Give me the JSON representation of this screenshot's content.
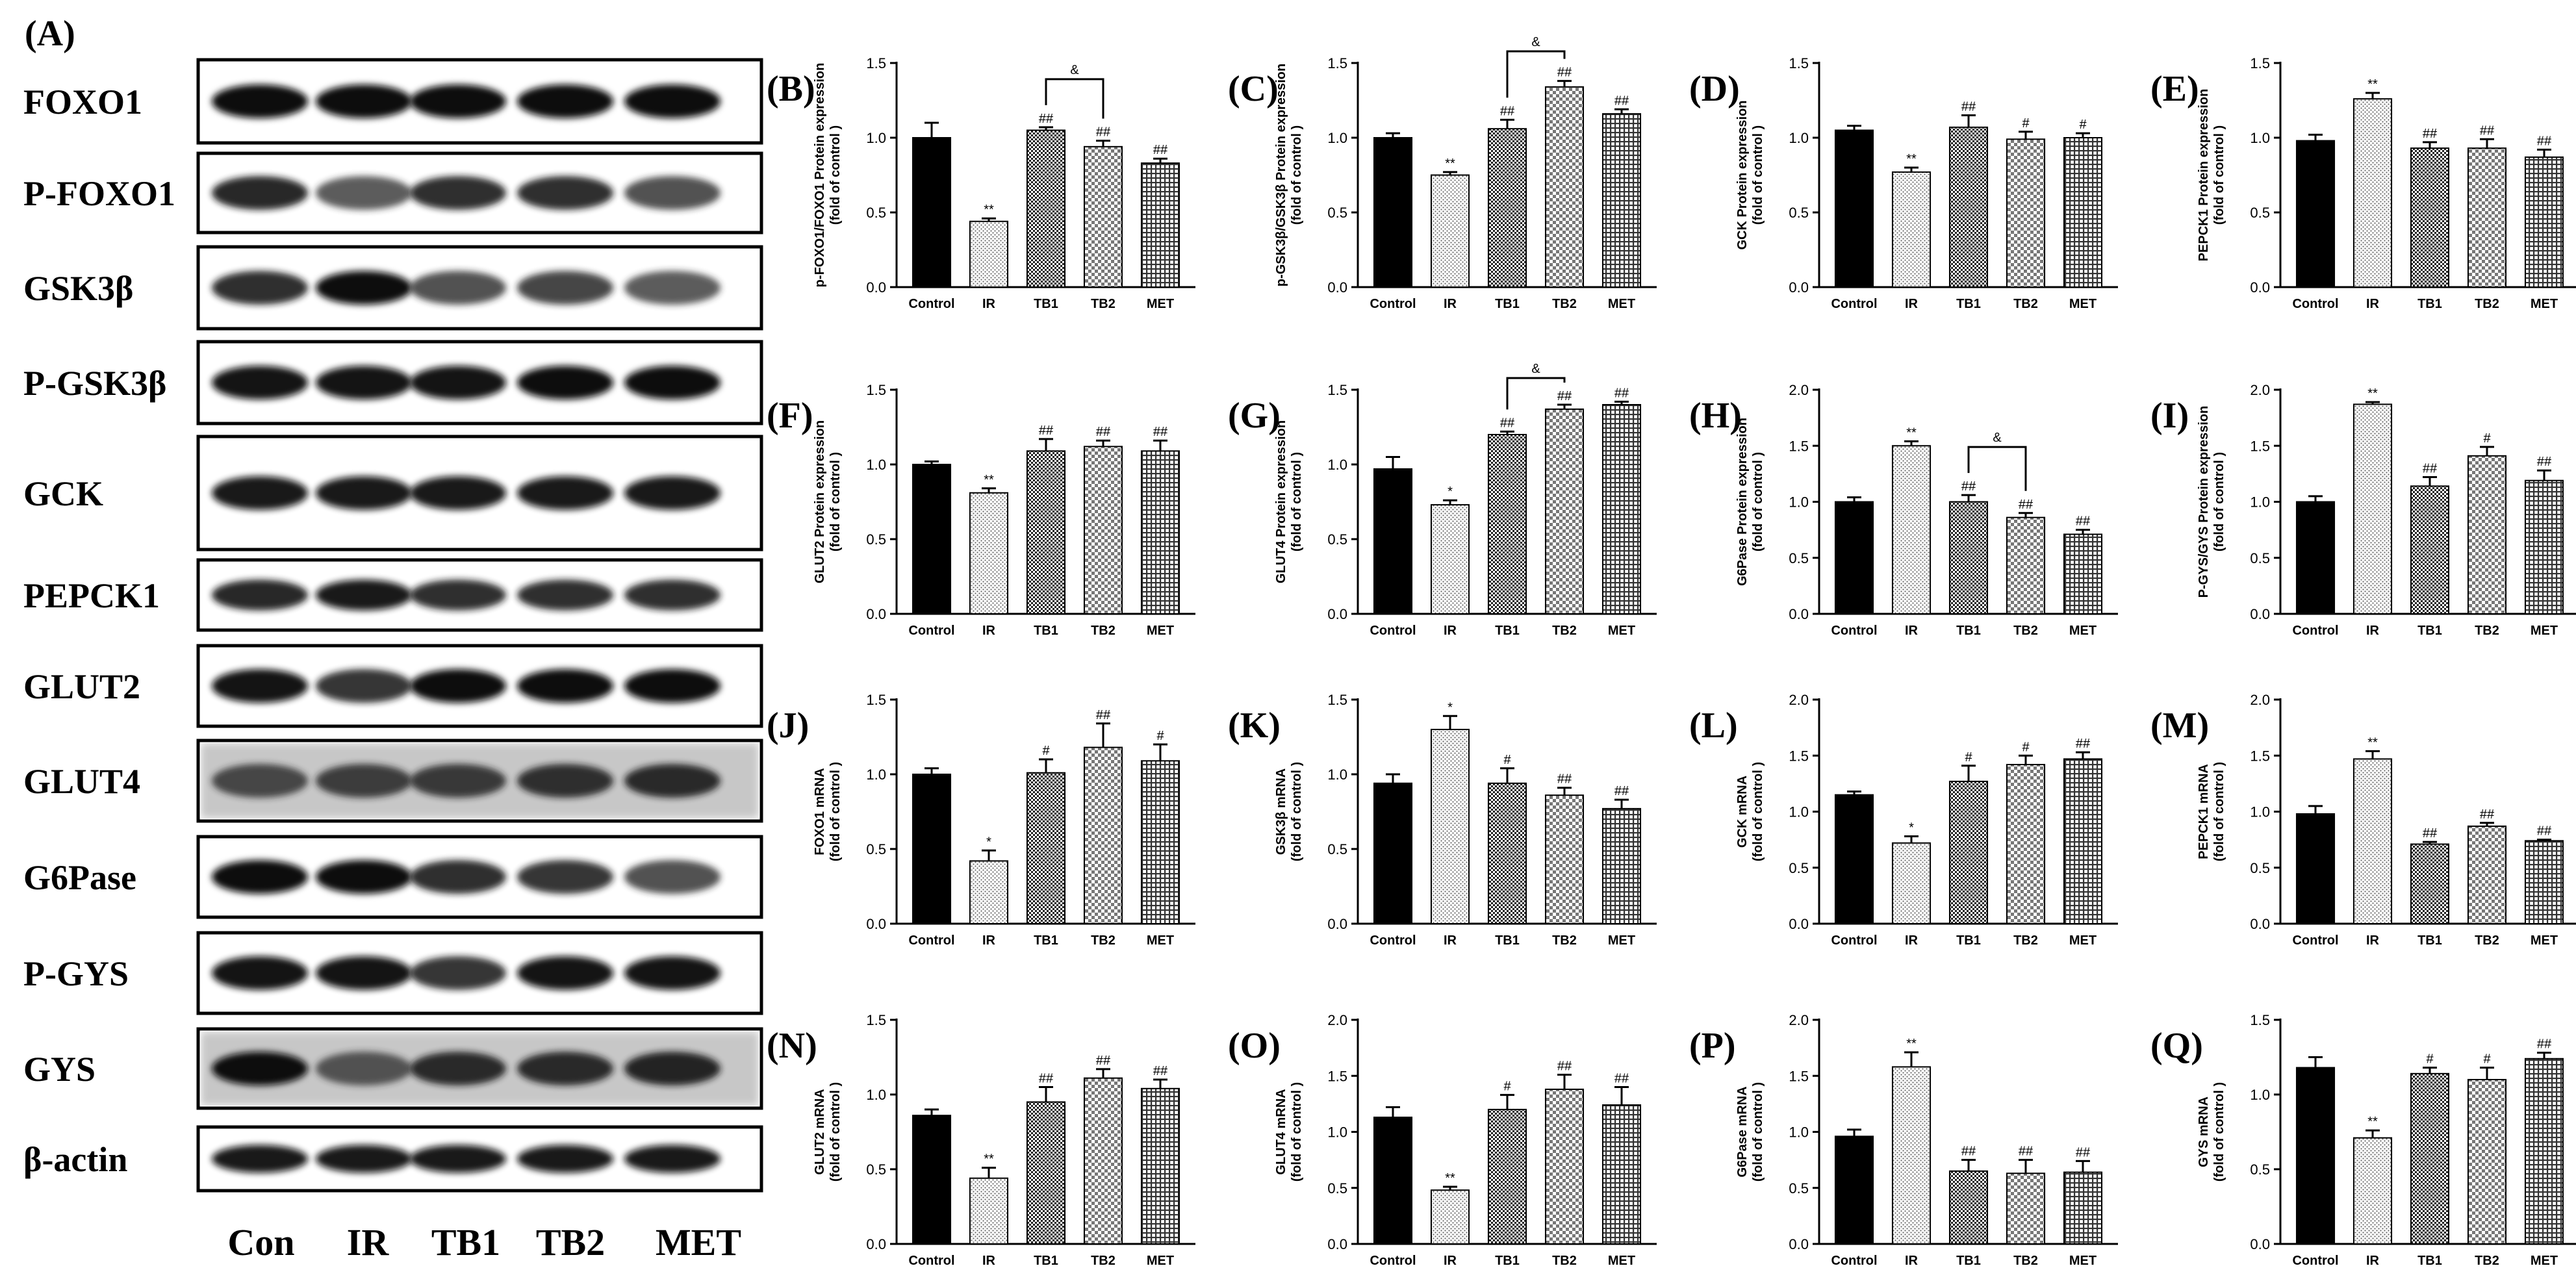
{
  "blot": {
    "panel_label": "(A)",
    "rows": [
      "FOXO1",
      "P-FOXO1",
      "GSK3β",
      "P-GSK3β",
      "GCK",
      "PEPCK1",
      "GLUT2",
      "GLUT4",
      "G6Pase",
      "P-GYS",
      "GYS",
      "β-actin"
    ],
    "lanes": [
      "Con",
      "IR",
      "TB1",
      "TB2",
      "MET"
    ]
  },
  "chart_data": [
    {
      "panel": "(B)",
      "type": "bar",
      "ylabel": [
        "p-FOXO1/FOXO1 Protein expression",
        "(fold of control )"
      ],
      "categories": [
        "Control",
        "IR",
        "TB1",
        "TB2",
        "MET"
      ],
      "values": [
        1.0,
        0.44,
        1.05,
        0.94,
        0.83
      ],
      "errors": [
        0.1,
        0.02,
        0.02,
        0.04,
        0.03
      ],
      "marks": [
        "",
        "**",
        "##",
        "##",
        "##"
      ],
      "ylim": [
        0,
        1.5
      ],
      "yticks": [
        "0.0",
        "0.5",
        "1.0",
        "1.5"
      ],
      "bracket": {
        "from": 2,
        "to": 3,
        "label": "&"
      }
    },
    {
      "panel": "(C)",
      "type": "bar",
      "ylabel": [
        "p-GSK3β/GSK3β Protein expression",
        "(fold of control )"
      ],
      "categories": [
        "Control",
        "IR",
        "TB1",
        "TB2",
        "MET"
      ],
      "values": [
        1.0,
        0.75,
        1.06,
        1.34,
        1.16
      ],
      "errors": [
        0.03,
        0.02,
        0.06,
        0.04,
        0.03
      ],
      "marks": [
        "",
        "**",
        "##",
        "##",
        "##"
      ],
      "ylim": [
        0,
        1.5
      ],
      "yticks": [
        "0.0",
        "0.5",
        "1.0",
        "1.5"
      ],
      "bracket": {
        "from": 2,
        "to": 3,
        "label": "&"
      }
    },
    {
      "panel": "(D)",
      "type": "bar",
      "ylabel": [
        "GCK Protein expression",
        "(fold of control )"
      ],
      "categories": [
        "Control",
        "IR",
        "TB1",
        "TB2",
        "MET"
      ],
      "values": [
        1.05,
        0.77,
        1.07,
        0.99,
        1.0
      ],
      "errors": [
        0.03,
        0.03,
        0.08,
        0.05,
        0.03
      ],
      "marks": [
        "",
        "**",
        "##",
        "#",
        "#"
      ],
      "ylim": [
        0,
        1.5
      ],
      "yticks": [
        "0.0",
        "0.5",
        "1.0",
        "1.5"
      ]
    },
    {
      "panel": "(E)",
      "type": "bar",
      "ylabel": [
        "PEPCK1 Protein expression",
        "(fold of control )"
      ],
      "categories": [
        "Control",
        "IR",
        "TB1",
        "TB2",
        "MET"
      ],
      "values": [
        0.98,
        1.26,
        0.93,
        0.93,
        0.87
      ],
      "errors": [
        0.04,
        0.04,
        0.04,
        0.06,
        0.05
      ],
      "marks": [
        "",
        "**",
        "##",
        "##",
        "##"
      ],
      "ylim": [
        0,
        1.5
      ],
      "yticks": [
        "0.0",
        "0.5",
        "1.0",
        "1.5"
      ]
    },
    {
      "panel": "(F)",
      "type": "bar",
      "ylabel": [
        "GLUT2 Protein expression",
        "(fold of control )"
      ],
      "categories": [
        "Control",
        "IR",
        "TB1",
        "TB2",
        "MET"
      ],
      "values": [
        1.0,
        0.81,
        1.09,
        1.12,
        1.09
      ],
      "errors": [
        0.02,
        0.03,
        0.08,
        0.04,
        0.07
      ],
      "marks": [
        "",
        "**",
        "##",
        "##",
        "##"
      ],
      "ylim": [
        0,
        1.5
      ],
      "yticks": [
        "0.0",
        "0.5",
        "1.0",
        "1.5"
      ]
    },
    {
      "panel": "(G)",
      "type": "bar",
      "ylabel": [
        "GLUT4 Protein expression",
        "(fold of control )"
      ],
      "categories": [
        "Control",
        "IR",
        "TB1",
        "TB2",
        "MET"
      ],
      "values": [
        0.97,
        0.73,
        1.2,
        1.37,
        1.4
      ],
      "errors": [
        0.08,
        0.03,
        0.02,
        0.03,
        0.02
      ],
      "marks": [
        "",
        "*",
        "##",
        "##",
        "##"
      ],
      "ylim": [
        0,
        1.5
      ],
      "yticks": [
        "0.0",
        "0.5",
        "1.0",
        "1.5"
      ],
      "bracket": {
        "from": 2,
        "to": 3,
        "label": "&"
      }
    },
    {
      "panel": "(H)",
      "type": "bar",
      "ylabel": [
        "G6Pase Protein expression",
        "(fold of control )"
      ],
      "categories": [
        "Control",
        "IR",
        "TB1",
        "TB2",
        "MET"
      ],
      "values": [
        1.0,
        1.5,
        1.0,
        0.86,
        0.71
      ],
      "errors": [
        0.04,
        0.04,
        0.06,
        0.04,
        0.04
      ],
      "marks": [
        "",
        "**",
        "##",
        "##",
        "##"
      ],
      "ylim": [
        0,
        2.0
      ],
      "yticks": [
        "0.0",
        "0.5",
        "1.0",
        "1.5",
        "2.0"
      ],
      "bracket": {
        "from": 2,
        "to": 3,
        "label": "&"
      }
    },
    {
      "panel": "(I)",
      "type": "bar",
      "ylabel": [
        "P-GYS/GYS Protein expression",
        "(fold of control )"
      ],
      "categories": [
        "Control",
        "IR",
        "TB1",
        "TB2",
        "MET"
      ],
      "values": [
        1.0,
        1.87,
        1.14,
        1.41,
        1.19
      ],
      "errors": [
        0.05,
        0.02,
        0.08,
        0.08,
        0.09
      ],
      "marks": [
        "",
        "**",
        "##",
        "#",
        "##"
      ],
      "ylim": [
        0,
        2.0
      ],
      "yticks": [
        "0.0",
        "0.5",
        "1.0",
        "1.5",
        "2.0"
      ]
    },
    {
      "panel": "(J)",
      "type": "bar",
      "ylabel": [
        "FOXO1 mRNA",
        "(fold of control )"
      ],
      "categories": [
        "Control",
        "IR",
        "TB1",
        "TB2",
        "MET"
      ],
      "values": [
        1.0,
        0.42,
        1.01,
        1.18,
        1.09
      ],
      "errors": [
        0.04,
        0.07,
        0.09,
        0.16,
        0.11
      ],
      "marks": [
        "",
        "*",
        "#",
        "##",
        "#"
      ],
      "ylim": [
        0,
        1.5
      ],
      "yticks": [
        "0.0",
        "0.5",
        "1.0",
        "1.5"
      ]
    },
    {
      "panel": "(K)",
      "type": "bar",
      "ylabel": [
        "GSK3β mRNA",
        "(fold of control )"
      ],
      "categories": [
        "Control",
        "IR",
        "TB1",
        "TB2",
        "MET"
      ],
      "values": [
        0.94,
        1.3,
        0.94,
        0.86,
        0.77
      ],
      "errors": [
        0.06,
        0.09,
        0.1,
        0.05,
        0.06
      ],
      "marks": [
        "",
        "*",
        "#",
        "##",
        "##"
      ],
      "ylim": [
        0,
        1.5
      ],
      "yticks": [
        "0.0",
        "0.5",
        "1.0",
        "1.5"
      ]
    },
    {
      "panel": "(L)",
      "type": "bar",
      "ylabel": [
        "GCK mRNA",
        "(fold of control )"
      ],
      "categories": [
        "Control",
        "IR",
        "TB1",
        "TB2",
        "MET"
      ],
      "values": [
        1.15,
        0.72,
        1.27,
        1.42,
        1.47
      ],
      "errors": [
        0.03,
        0.06,
        0.14,
        0.08,
        0.06
      ],
      "marks": [
        "",
        "*",
        "#",
        "#",
        "##"
      ],
      "ylim": [
        0,
        2.0
      ],
      "yticks": [
        "0.0",
        "0.5",
        "1.0",
        "1.5",
        "2.0"
      ]
    },
    {
      "panel": "(M)",
      "type": "bar",
      "ylabel": [
        "PEPCK1 mRNA",
        "(fold of control )"
      ],
      "categories": [
        "Control",
        "IR",
        "TB1",
        "TB2",
        "MET"
      ],
      "values": [
        0.98,
        1.47,
        0.71,
        0.87,
        0.74
      ],
      "errors": [
        0.07,
        0.07,
        0.02,
        0.03,
        0.01
      ],
      "marks": [
        "",
        "**",
        "##",
        "##",
        "##"
      ],
      "ylim": [
        0,
        2.0
      ],
      "yticks": [
        "0.0",
        "0.5",
        "1.0",
        "1.5",
        "2.0"
      ]
    },
    {
      "panel": "(N)",
      "type": "bar",
      "ylabel": [
        "GLUT2 mRNA",
        "(fold of control )"
      ],
      "categories": [
        "Control",
        "IR",
        "TB1",
        "TB2",
        "MET"
      ],
      "values": [
        0.86,
        0.44,
        0.95,
        1.11,
        1.04
      ],
      "errors": [
        0.04,
        0.07,
        0.1,
        0.06,
        0.06
      ],
      "marks": [
        "",
        "**",
        "##",
        "##",
        "##"
      ],
      "ylim": [
        0,
        1.5
      ],
      "yticks": [
        "0.0",
        "0.5",
        "1.0",
        "1.5"
      ]
    },
    {
      "panel": "(O)",
      "type": "bar",
      "ylabel": [
        "GLUT4 mRNA",
        "(fold of control )"
      ],
      "categories": [
        "Control",
        "IR",
        "TB1",
        "TB2",
        "MET"
      ],
      "values": [
        1.13,
        0.48,
        1.2,
        1.38,
        1.24
      ],
      "errors": [
        0.09,
        0.03,
        0.13,
        0.13,
        0.16
      ],
      "marks": [
        "",
        "**",
        "#",
        "##",
        "##"
      ],
      "ylim": [
        0,
        2.0
      ],
      "yticks": [
        "0.0",
        "0.5",
        "1.0",
        "1.5",
        "2.0"
      ]
    },
    {
      "panel": "(P)",
      "type": "bar",
      "ylabel": [
        "G6Pase mRNA",
        "(fold of control )"
      ],
      "categories": [
        "Control",
        "IR",
        "TB1",
        "TB2",
        "MET"
      ],
      "values": [
        0.96,
        1.58,
        0.65,
        0.63,
        0.64
      ],
      "errors": [
        0.06,
        0.13,
        0.1,
        0.12,
        0.1
      ],
      "marks": [
        "",
        "**",
        "##",
        "##",
        "##"
      ],
      "ylim": [
        0,
        2.0
      ],
      "yticks": [
        "0.0",
        "0.5",
        "1.0",
        "1.5",
        "2.0"
      ]
    },
    {
      "panel": "(Q)",
      "type": "bar",
      "ylabel": [
        "GYS mRNA",
        "(fold of control )"
      ],
      "categories": [
        "Control",
        "IR",
        "TB1",
        "TB2",
        "MET"
      ],
      "values": [
        1.18,
        0.71,
        1.14,
        1.1,
        1.24
      ],
      "errors": [
        0.07,
        0.05,
        0.04,
        0.08,
        0.04
      ],
      "marks": [
        "",
        "**",
        "#",
        "#",
        "##"
      ],
      "ylim": [
        0,
        1.5
      ],
      "yticks": [
        "0.0",
        "0.5",
        "1.0",
        "1.5"
      ]
    }
  ]
}
